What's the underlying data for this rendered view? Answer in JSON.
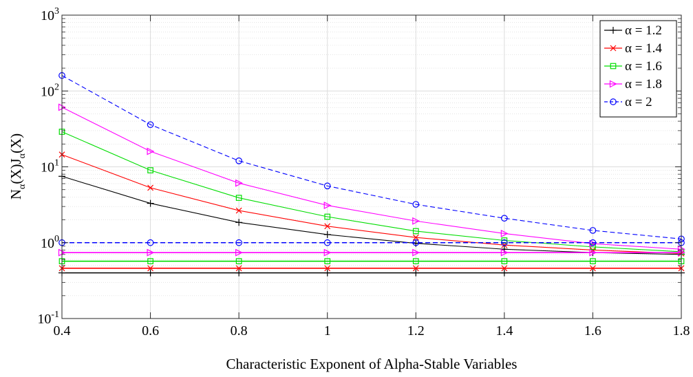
{
  "chart_data": {
    "type": "line",
    "title": "",
    "xlabel": "Characteristic Exponent of Alpha-Stable Variables",
    "ylabel": {
      "base": "N",
      "sub1": "α",
      "mid": "(X)J",
      "sub2": "α",
      "end": "(X)"
    },
    "x": [
      0.4,
      0.6,
      0.8,
      1.0,
      1.2,
      1.4,
      1.6,
      1.8
    ],
    "xlim": [
      0.4,
      1.8
    ],
    "xticks": [
      0.4,
      0.6,
      0.8,
      1.0,
      1.2,
      1.4,
      1.6,
      1.8
    ],
    "xtick_labels": [
      "0.4",
      "0.6",
      "0.8",
      "1",
      "1.2",
      "1.4",
      "1.6",
      "1.8"
    ],
    "yscale": "log",
    "ylim": [
      0.1,
      1000
    ],
    "yticks": [
      {
        "value": 0.1,
        "base": "10",
        "exp": "-1"
      },
      {
        "value": 1,
        "base": "10",
        "exp": "0"
      },
      {
        "value": 10,
        "base": "10",
        "exp": "1"
      },
      {
        "value": 100,
        "base": "10",
        "exp": "2"
      },
      {
        "value": 1000,
        "base": "10",
        "exp": "3"
      }
    ],
    "grid": true,
    "legend_position": "top-right",
    "series": [
      {
        "name": "α = 1.2",
        "color": "#000000",
        "marker": "plus",
        "dashed": false,
        "values": [
          7.5,
          3.3,
          1.85,
          1.28,
          0.98,
          0.82,
          0.74,
          0.7
        ],
        "baseline": 0.4
      },
      {
        "name": "α = 1.4",
        "color": "#ff0000",
        "marker": "x",
        "dashed": false,
        "values": [
          14.5,
          5.3,
          2.65,
          1.65,
          1.17,
          0.93,
          0.8,
          0.72
        ],
        "baseline": 0.46
      },
      {
        "name": "α = 1.6",
        "color": "#00dd00",
        "marker": "square",
        "dashed": false,
        "values": [
          29.0,
          9.0,
          3.9,
          2.2,
          1.42,
          1.07,
          0.88,
          0.76
        ],
        "baseline": 0.57
      },
      {
        "name": "α = 1.8",
        "color": "#ff00ff",
        "marker": "triangle-right",
        "dashed": false,
        "values": [
          61.0,
          16.0,
          6.1,
          3.1,
          1.93,
          1.32,
          0.97,
          0.82
        ],
        "baseline": 0.74
      },
      {
        "name": "α = 2",
        "color": "#0000ff",
        "marker": "circle",
        "dashed": true,
        "values": [
          160.0,
          36.0,
          12.0,
          5.6,
          3.2,
          2.1,
          1.45,
          1.12
        ],
        "baseline": 1.0
      }
    ]
  }
}
